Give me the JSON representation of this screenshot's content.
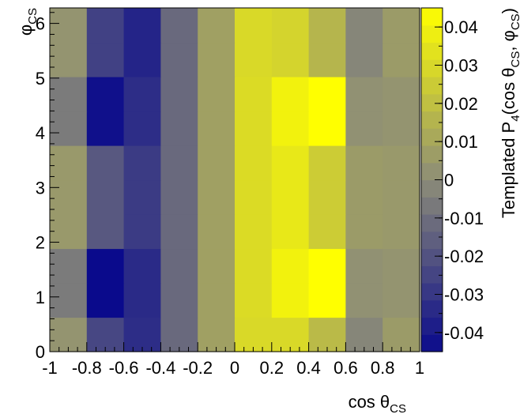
{
  "chart_data": {
    "type": "heatmap",
    "title": "",
    "xlabel": "cos θCS",
    "xlabel_parts": {
      "main": "cos θ",
      "sub": "CS"
    },
    "ylabel": "φCS",
    "ylabel_parts": {
      "main": "φ",
      "sub": "CS"
    },
    "zlabel": "Templated P4(cos θCS, φCS)",
    "zlabel_parts": {
      "a": "Templated P",
      "a_sub": "4",
      "b": "(cos θ",
      "b_sub": "CS",
      "c": ", φ",
      "c_sub": "CS",
      "d": ")"
    },
    "xlim": [
      -1,
      1
    ],
    "ylim": [
      0,
      6.2832
    ],
    "zlim": [
      -0.045,
      0.045
    ],
    "x_ticks": [
      "-1",
      "-0.8",
      "-0.6",
      "-0.4",
      "-0.2",
      "0",
      "0.2",
      "0.4",
      "0.6",
      "0.8",
      "1"
    ],
    "y_ticks": [
      "0",
      "1",
      "2",
      "3",
      "4",
      "5",
      "6"
    ],
    "z_ticks": [
      "0.04",
      "0.03",
      "0.02",
      "0.01",
      "0",
      "-0.01",
      "-0.02",
      "-0.03",
      "-0.04"
    ],
    "x_bin_edges": [
      -1,
      -0.8,
      -0.6,
      -0.4,
      -0.2,
      0,
      0.2,
      0.4,
      0.6,
      0.8,
      1
    ],
    "y_bin_edges": [
      0,
      0.6283,
      1.2566,
      1.885,
      2.5133,
      3.1416,
      3.7699,
      4.3982,
      5.0265,
      5.6549,
      6.2832
    ],
    "values": [
      [
        0.003,
        -0.024,
        -0.033,
        -0.012,
        0.008,
        0.03,
        0.03,
        0.018,
        -0.002,
        0.006
      ],
      [
        -0.006,
        -0.045,
        -0.034,
        -0.012,
        0.008,
        0.031,
        0.04,
        0.045,
        0.002,
        0.003
      ],
      [
        -0.006,
        -0.045,
        -0.034,
        -0.012,
        0.008,
        0.031,
        0.04,
        0.045,
        0.002,
        0.003
      ],
      [
        0.005,
        -0.018,
        -0.028,
        -0.012,
        0.008,
        0.031,
        0.036,
        0.025,
        0.006,
        0.005
      ],
      [
        0.005,
        -0.018,
        -0.028,
        -0.012,
        0.008,
        0.031,
        0.036,
        0.025,
        0.006,
        0.005
      ],
      [
        0.005,
        -0.018,
        -0.028,
        -0.012,
        0.008,
        0.031,
        0.036,
        0.025,
        0.006,
        0.005
      ],
      [
        -0.006,
        -0.043,
        -0.033,
        -0.012,
        0.008,
        0.031,
        0.04,
        0.045,
        0.002,
        0.003
      ],
      [
        -0.006,
        -0.043,
        -0.033,
        -0.012,
        0.008,
        0.031,
        0.04,
        0.045,
        0.002,
        0.003
      ],
      [
        0.003,
        -0.026,
        -0.036,
        -0.012,
        0.008,
        0.03,
        0.028,
        0.016,
        -0.002,
        0.006
      ],
      [
        0.003,
        -0.026,
        -0.036,
        -0.012,
        0.008,
        0.03,
        0.028,
        0.016,
        -0.002,
        0.006
      ]
    ],
    "colormap": {
      "low": "#0a0a8c",
      "mid": "#8c8c78",
      "high": "#ffff00"
    },
    "grid": false
  }
}
